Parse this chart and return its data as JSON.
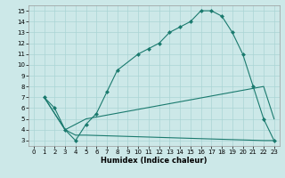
{
  "xlabel": "Humidex (Indice chaleur)",
  "bg_color": "#cce8e8",
  "grid_color": "#aad4d4",
  "line_color": "#1a7a6e",
  "xlim": [
    -0.5,
    23.5
  ],
  "ylim": [
    2.5,
    15.5
  ],
  "xticks": [
    0,
    1,
    2,
    3,
    4,
    5,
    6,
    7,
    8,
    9,
    10,
    11,
    12,
    13,
    14,
    15,
    16,
    17,
    18,
    19,
    20,
    21,
    22,
    23
  ],
  "yticks": [
    3,
    4,
    5,
    6,
    7,
    8,
    9,
    10,
    11,
    12,
    13,
    14,
    15
  ],
  "line1_x": [
    1,
    2,
    3,
    4,
    5,
    6,
    7,
    8,
    10,
    11,
    12,
    13,
    14,
    15,
    16,
    17,
    18,
    19,
    20,
    21,
    22,
    23
  ],
  "line1_y": [
    7,
    6,
    4,
    3,
    4.5,
    5.5,
    7.5,
    9.5,
    11,
    11.5,
    12,
    13,
    13.5,
    14,
    15,
    15,
    14.5,
    13,
    11,
    8,
    5,
    3
  ],
  "line2_x": [
    1,
    3,
    4,
    5,
    22,
    23
  ],
  "line2_y": [
    7,
    4,
    4.5,
    5,
    8,
    5
  ],
  "line3_x": [
    1,
    3,
    4,
    5,
    22,
    23
  ],
  "line3_y": [
    7,
    4,
    3.5,
    3.5,
    3,
    3
  ],
  "xlabel_fontsize": 6,
  "tick_fontsize": 5,
  "marker_size": 2.5,
  "linewidth": 0.8
}
